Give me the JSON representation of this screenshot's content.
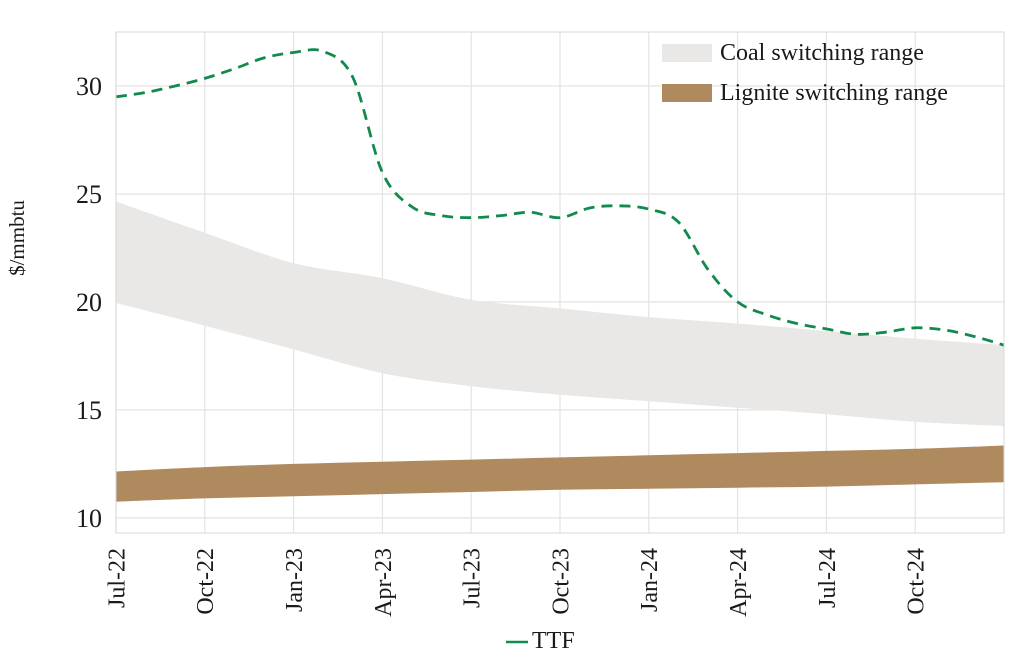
{
  "chart_data": {
    "type": "line",
    "title": "",
    "ylabel": "$/mmbtu",
    "xlabel": "",
    "ylim": [
      9.3,
      32.5
    ],
    "yticks": [
      10,
      15,
      20,
      25,
      30
    ],
    "x_tick_labels": [
      "Jul-22",
      "Oct-22",
      "Jan-23",
      "Apr-23",
      "Jul-23",
      "Oct-23",
      "Jan-24",
      "Apr-24",
      "Jul-24",
      "Oct-24"
    ],
    "x_tick_month_index": [
      0,
      3,
      6,
      9,
      12,
      15,
      18,
      21,
      24,
      27
    ],
    "x_month_count": 31,
    "grid": true,
    "legend_position": "top-right (bands) and bottom-center (line)",
    "colors": {
      "background": "#ffffff",
      "gridline": "#e3e3e3",
      "plot_border": "#d8d8d8",
      "text": "#1a1a1a"
    },
    "bands": [
      {
        "name": "Coal switching range",
        "color": "#e9e8e6",
        "x_month_index": [
          0,
          3,
          6,
          9,
          12,
          15,
          18,
          21,
          24,
          27,
          30
        ],
        "upper": [
          24.65,
          23.2,
          21.8,
          21.1,
          20.1,
          19.7,
          19.3,
          19.0,
          18.65,
          18.3,
          18.0
        ],
        "lower": [
          19.95,
          18.9,
          17.8,
          16.7,
          16.1,
          15.7,
          15.4,
          15.1,
          14.8,
          14.45,
          14.25
        ]
      },
      {
        "name": "Lignite switching range",
        "color": "#b08a5f",
        "x_month_index": [
          0,
          3,
          6,
          9,
          12,
          15,
          18,
          21,
          24,
          27,
          30
        ],
        "upper": [
          12.15,
          12.35,
          12.5,
          12.6,
          12.7,
          12.8,
          12.9,
          13.0,
          13.1,
          13.2,
          13.35
        ],
        "lower": [
          10.75,
          10.9,
          11.0,
          11.1,
          11.2,
          11.3,
          11.35,
          11.4,
          11.45,
          11.55,
          11.65
        ]
      }
    ],
    "series": [
      {
        "name": "TTF",
        "color": "#128a4e",
        "line_style": "dashed",
        "x_months": [
          "Jul-22",
          "Aug-22",
          "Sep-22",
          "Oct-22",
          "Nov-22",
          "Dec-22",
          "Jan-23",
          "Feb-23",
          "Mar-23",
          "Apr-23",
          "May-23",
          "Jun-23",
          "Jul-23",
          "Aug-23",
          "Sep-23",
          "Oct-23",
          "Nov-23",
          "Dec-23",
          "Jan-24",
          "Feb-24",
          "Mar-24",
          "Apr-24",
          "May-24",
          "Jun-24",
          "Jul-24",
          "Aug-24",
          "Sep-24",
          "Oct-24",
          "Nov-24",
          "Dec-24",
          "Jan-25"
        ],
        "values": [
          29.5,
          29.7,
          30.0,
          30.35,
          30.8,
          31.3,
          31.55,
          31.6,
          30.4,
          26.0,
          24.4,
          24.0,
          23.9,
          24.0,
          24.15,
          23.9,
          24.35,
          24.45,
          24.3,
          23.7,
          21.5,
          20.0,
          19.4,
          19.0,
          18.75,
          18.5,
          18.6,
          18.8,
          18.7,
          18.4,
          18.0
        ]
      }
    ]
  }
}
